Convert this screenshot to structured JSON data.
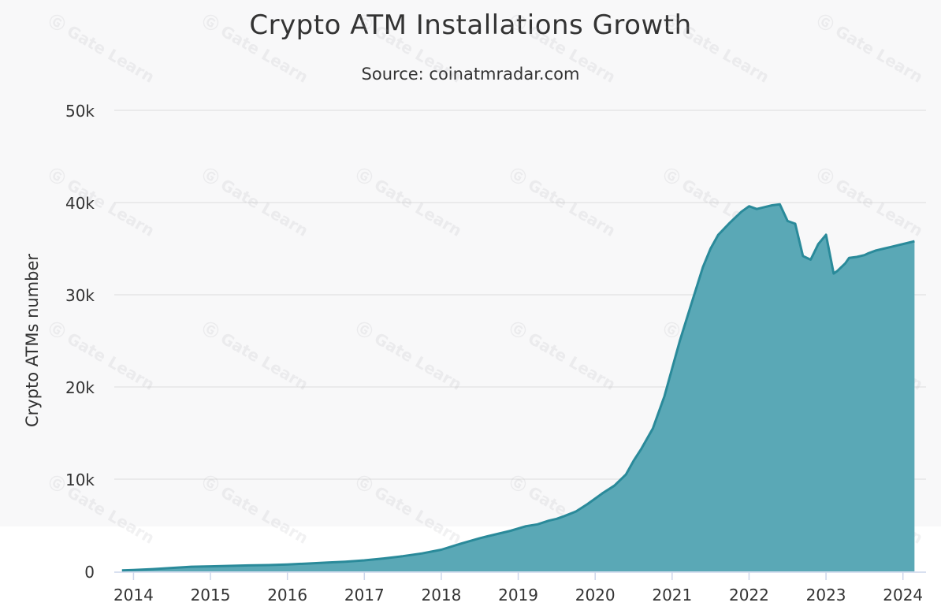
{
  "chart_data": {
    "type": "area",
    "title": "Crypto ATM Installations Growth",
    "subtitle": "Source: coinatmradar.com",
    "ylabel": "Crypto ATMs number",
    "xlabel": "",
    "ylim": [
      0,
      50000
    ],
    "xlim": [
      2013.75,
      2024.3
    ],
    "y_ticks": [
      0,
      10000,
      20000,
      30000,
      40000,
      50000
    ],
    "y_tick_labels": [
      "0",
      "10k",
      "20k",
      "30k",
      "40k",
      "50k"
    ],
    "x_ticks": [
      2014,
      2015,
      2016,
      2017,
      2018,
      2019,
      2020,
      2021,
      2022,
      2023,
      2024
    ],
    "x_tick_labels": [
      "2014",
      "2015",
      "2016",
      "2017",
      "2018",
      "2019",
      "2020",
      "2021",
      "2022",
      "2023",
      "2024"
    ],
    "grid": true,
    "colors": {
      "fill": "#5aa8b6",
      "line": "#2a8a9a",
      "grid": "#dddddd",
      "axis": "#ccd6eb"
    },
    "series": [
      {
        "x": [
          2013.85,
          2014.0,
          2014.25,
          2014.5,
          2014.75,
          2015.0,
          2015.25,
          2015.5,
          2015.75,
          2016.0,
          2016.25,
          2016.5,
          2016.75,
          2017.0,
          2017.25,
          2017.5,
          2017.75,
          2018.0,
          2018.25,
          2018.5,
          2018.6,
          2018.75,
          2018.9,
          2019.0,
          2019.1,
          2019.25,
          2019.4,
          2019.5,
          2019.6,
          2019.75,
          2019.9,
          2020.0,
          2020.1,
          2020.25,
          2020.4,
          2020.5,
          2020.6,
          2020.75,
          2020.9,
          2021.0,
          2021.1,
          2021.25,
          2021.4,
          2021.5,
          2021.6,
          2021.75,
          2021.9,
          2022.0,
          2022.1,
          2022.2,
          2022.3,
          2022.4,
          2022.5,
          2022.6,
          2022.7,
          2022.8,
          2022.9,
          2023.0,
          2023.1,
          2023.15,
          2023.25,
          2023.3,
          2023.4,
          2023.5,
          2023.55,
          2023.65,
          2023.75,
          2023.85,
          2023.95,
          2024.05,
          2024.15
        ],
        "values": [
          100,
          150,
          250,
          380,
          500,
          550,
          600,
          650,
          680,
          750,
          850,
          950,
          1050,
          1200,
          1400,
          1650,
          1950,
          2350,
          3000,
          3600,
          3800,
          4100,
          4400,
          4650,
          4900,
          5100,
          5500,
          5700,
          6000,
          6500,
          7300,
          7900,
          8500,
          9300,
          10500,
          12000,
          13300,
          15500,
          19000,
          22000,
          25000,
          29000,
          33000,
          35000,
          36500,
          37800,
          39000,
          39600,
          39300,
          39500,
          39700,
          39800,
          38000,
          37700,
          34200,
          33800,
          35500,
          36500,
          32300,
          32600,
          33400,
          34000,
          34100,
          34300,
          34500,
          34800,
          35000,
          35200,
          35400,
          35600,
          35800
        ]
      }
    ]
  },
  "watermark": "Gate Learn"
}
